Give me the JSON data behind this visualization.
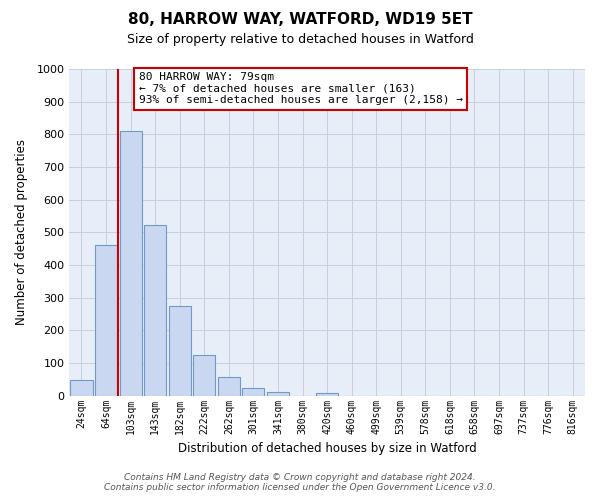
{
  "title": "80, HARROW WAY, WATFORD, WD19 5ET",
  "subtitle": "Size of property relative to detached houses in Watford",
  "xlabel": "Distribution of detached houses by size in Watford",
  "ylabel": "Number of detached properties",
  "bar_labels": [
    "24sqm",
    "64sqm",
    "103sqm",
    "143sqm",
    "182sqm",
    "222sqm",
    "262sqm",
    "301sqm",
    "341sqm",
    "380sqm",
    "420sqm",
    "460sqm",
    "499sqm",
    "539sqm",
    "578sqm",
    "618sqm",
    "658sqm",
    "697sqm",
    "737sqm",
    "776sqm",
    "816sqm"
  ],
  "bar_values": [
    47,
    460,
    810,
    522,
    275,
    125,
    58,
    22,
    12,
    0,
    8,
    0,
    0,
    0,
    0,
    0,
    0,
    0,
    0,
    0,
    0
  ],
  "bar_color": "#c9d8f0",
  "bar_edge_color": "#7099c8",
  "vline_color": "#cc0000",
  "vline_x": 1.5,
  "ylim": [
    0,
    1000
  ],
  "yticks": [
    0,
    100,
    200,
    300,
    400,
    500,
    600,
    700,
    800,
    900,
    1000
  ],
  "annotation_title": "80 HARROW WAY: 79sqm",
  "annotation_line1": "← 7% of detached houses are smaller (163)",
  "annotation_line2": "93% of semi-detached houses are larger (2,158) →",
  "annotation_box_color": "#ffffff",
  "annotation_box_edge_color": "#cc0000",
  "footer_line1": "Contains HM Land Registry data © Crown copyright and database right 2024.",
  "footer_line2": "Contains public sector information licensed under the Open Government Licence v3.0.",
  "background_color": "#ffffff",
  "plot_bg_color": "#e8eef8",
  "grid_color": "#c8cfe0"
}
